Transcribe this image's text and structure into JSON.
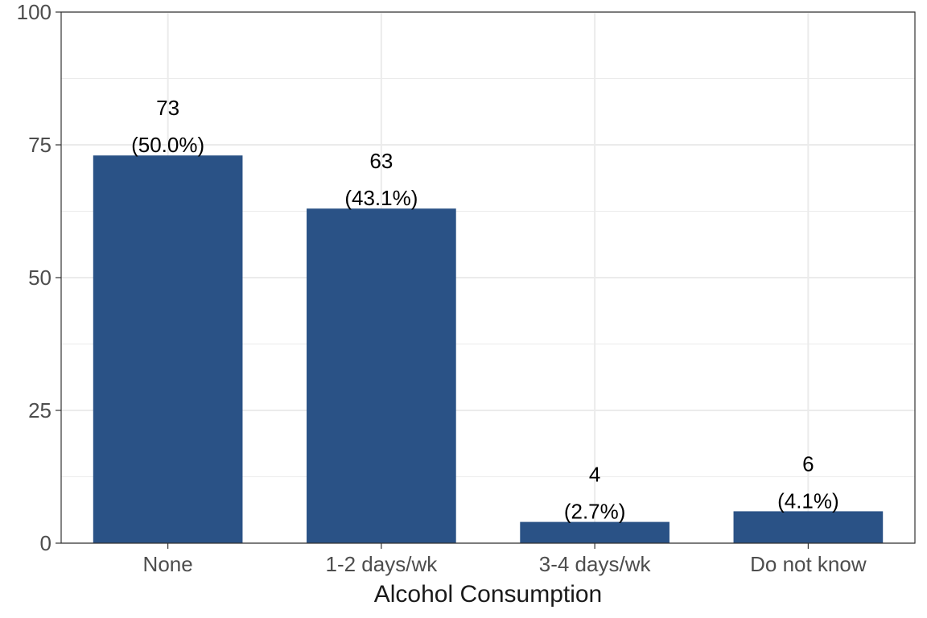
{
  "chart_data": {
    "type": "bar",
    "categories": [
      "None",
      "1-2 days/wk",
      "3-4 days/wk",
      "Do not know"
    ],
    "values": [
      73,
      63,
      4,
      6
    ],
    "value_labels": [
      "73",
      "63",
      "4",
      "6"
    ],
    "percent_labels": [
      "(50.0%)",
      "(43.1%)",
      "(2.7%)",
      "(4.1%)"
    ],
    "title": "",
    "xlabel": "Alcohol Consumption",
    "ylabel": "",
    "ylim": [
      0,
      100
    ],
    "yticks": [
      0,
      25,
      50,
      75,
      100
    ],
    "ytick_labels": [
      "0",
      "25",
      "50",
      "75",
      "100"
    ],
    "grid": true,
    "legend": "none",
    "colors": {
      "bar": "#2a5286"
    }
  }
}
